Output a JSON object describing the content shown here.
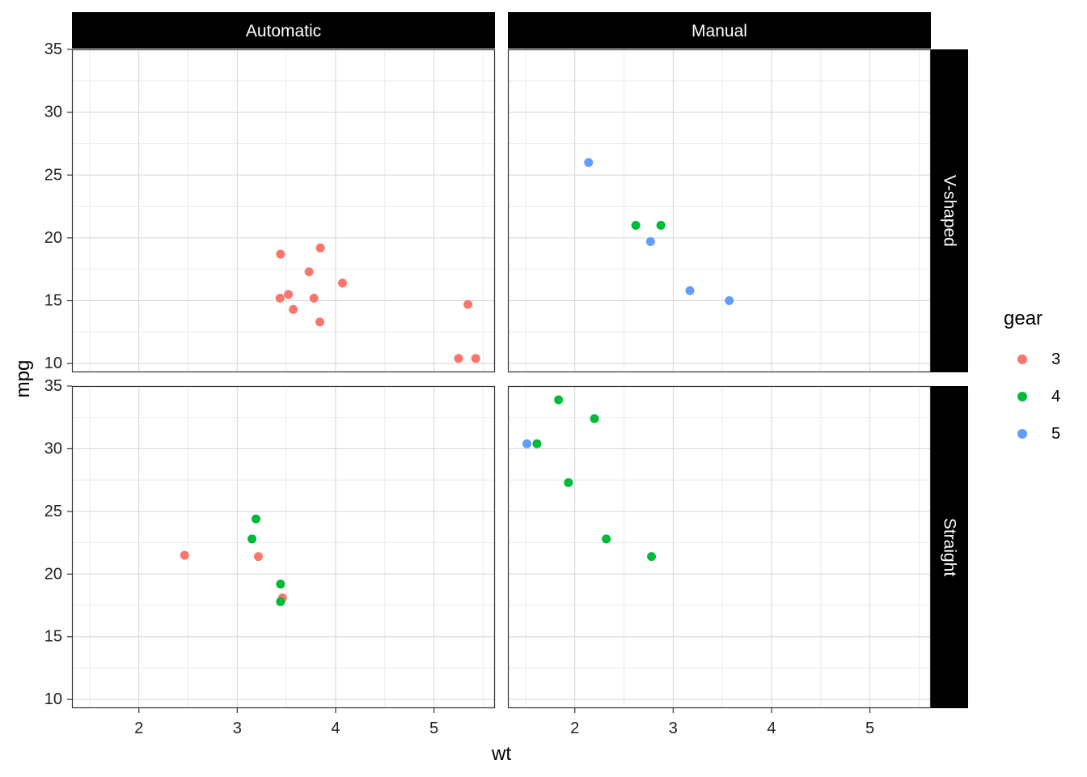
{
  "chart_data": {
    "type": "scatter",
    "xlabel": "wt",
    "ylabel": "mpg",
    "xlim": [
      1.32,
      5.62
    ],
    "ylim": [
      9.3,
      35.0
    ],
    "x_ticks": [
      2,
      3,
      4,
      5
    ],
    "y_ticks": [
      10,
      15,
      20,
      25,
      30,
      35
    ],
    "grid": true,
    "facet_columns": [
      "Automatic",
      "Manual"
    ],
    "facet_rows": [
      "V-shaped",
      "Straight"
    ],
    "legend": {
      "title": "gear",
      "position": "right",
      "entries": [
        {
          "label": "3",
          "color": "#F8766D"
        },
        {
          "label": "4",
          "color": "#00BA38"
        },
        {
          "label": "5",
          "color": "#619CFF"
        }
      ]
    },
    "panels": [
      {
        "column": "Automatic",
        "row": "V-shaped",
        "points": [
          {
            "x": 3.44,
            "y": 18.7,
            "gear": "3"
          },
          {
            "x": 3.57,
            "y": 14.3,
            "gear": "3"
          },
          {
            "x": 4.07,
            "y": 16.4,
            "gear": "3"
          },
          {
            "x": 3.73,
            "y": 17.3,
            "gear": "3"
          },
          {
            "x": 3.78,
            "y": 15.2,
            "gear": "3"
          },
          {
            "x": 5.25,
            "y": 10.4,
            "gear": "3"
          },
          {
            "x": 5.424,
            "y": 10.4,
            "gear": "3"
          },
          {
            "x": 5.345,
            "y": 14.7,
            "gear": "3"
          },
          {
            "x": 3.52,
            "y": 15.5,
            "gear": "3"
          },
          {
            "x": 3.435,
            "y": 15.2,
            "gear": "3"
          },
          {
            "x": 3.84,
            "y": 13.3,
            "gear": "3"
          },
          {
            "x": 3.845,
            "y": 19.2,
            "gear": "3"
          }
        ]
      },
      {
        "column": "Manual",
        "row": "V-shaped",
        "points": [
          {
            "x": 2.62,
            "y": 21.0,
            "gear": "4"
          },
          {
            "x": 2.875,
            "y": 21.0,
            "gear": "4"
          },
          {
            "x": 2.14,
            "y": 26.0,
            "gear": "5"
          },
          {
            "x": 3.17,
            "y": 15.8,
            "gear": "5"
          },
          {
            "x": 2.77,
            "y": 19.7,
            "gear": "5"
          },
          {
            "x": 3.57,
            "y": 15.0,
            "gear": "5"
          }
        ]
      },
      {
        "column": "Automatic",
        "row": "Straight",
        "points": [
          {
            "x": 3.215,
            "y": 21.4,
            "gear": "3"
          },
          {
            "x": 3.46,
            "y": 18.1,
            "gear": "3"
          },
          {
            "x": 2.465,
            "y": 21.5,
            "gear": "3"
          },
          {
            "x": 3.19,
            "y": 24.4,
            "gear": "4"
          },
          {
            "x": 3.15,
            "y": 22.8,
            "gear": "4"
          },
          {
            "x": 3.44,
            "y": 19.2,
            "gear": "4"
          },
          {
            "x": 3.44,
            "y": 17.8,
            "gear": "4"
          }
        ]
      },
      {
        "column": "Manual",
        "row": "Straight",
        "points": [
          {
            "x": 2.32,
            "y": 22.8,
            "gear": "4"
          },
          {
            "x": 2.2,
            "y": 32.4,
            "gear": "4"
          },
          {
            "x": 1.615,
            "y": 30.4,
            "gear": "4"
          },
          {
            "x": 1.835,
            "y": 33.9,
            "gear": "4"
          },
          {
            "x": 1.935,
            "y": 27.3,
            "gear": "4"
          },
          {
            "x": 2.78,
            "y": 21.4,
            "gear": "4"
          },
          {
            "x": 1.513,
            "y": 30.4,
            "gear": "5"
          }
        ]
      }
    ]
  }
}
